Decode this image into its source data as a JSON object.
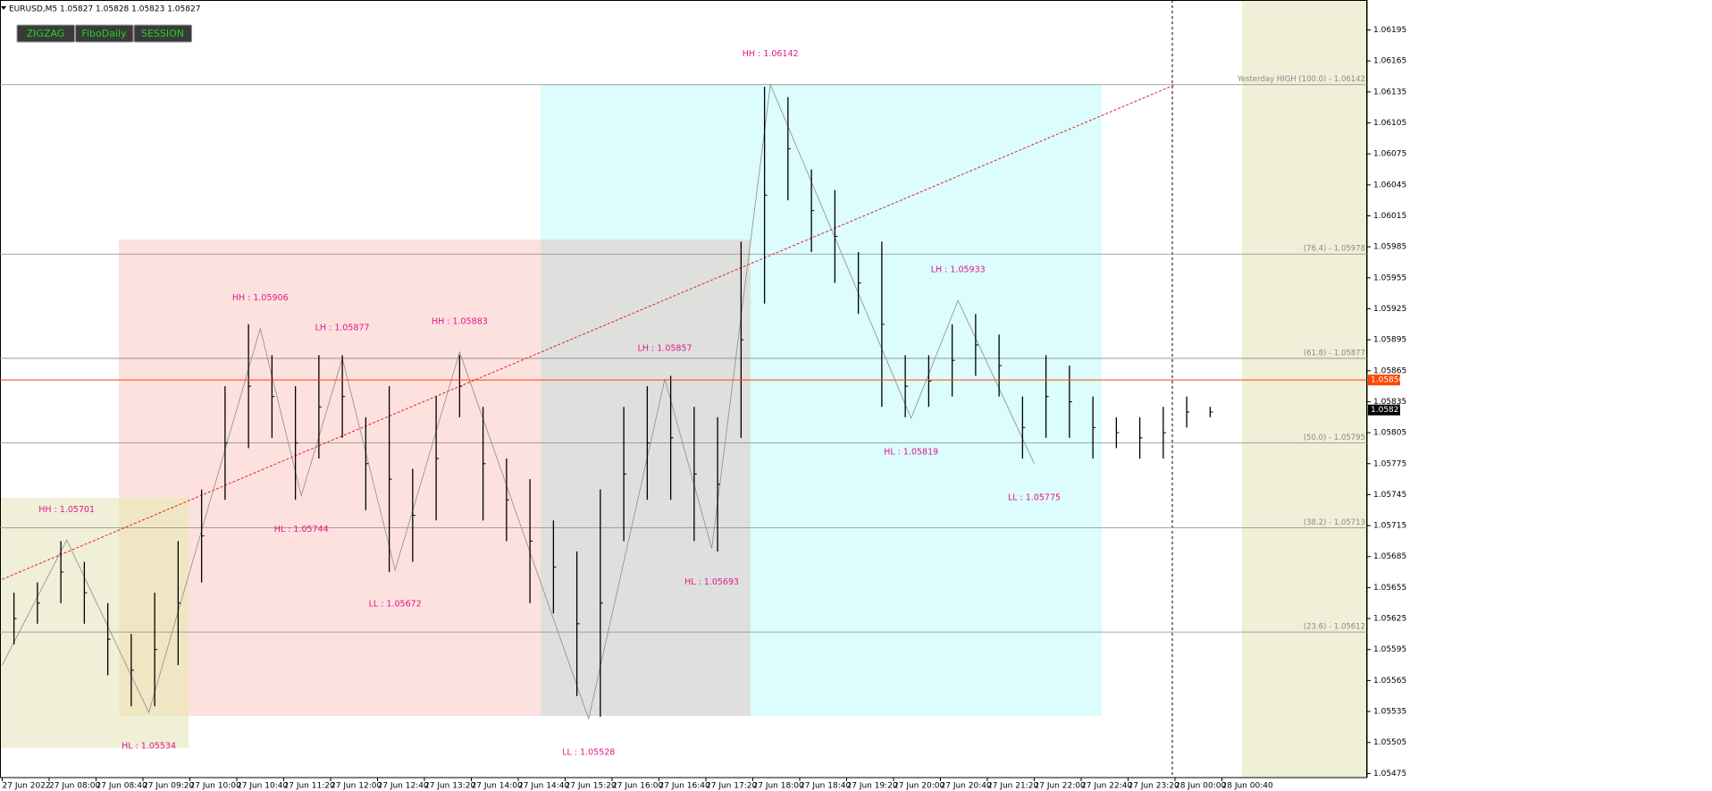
{
  "chart_data": {
    "type": "ohlc",
    "header": "EURUSD,M5  1.05827 1.05828 1.05823 1.05827",
    "buttons": [
      "ZIGZAG",
      "FiboDaily",
      "SESSION"
    ],
    "ylim": [
      1.05471,
      1.06224
    ],
    "yticks": [
      1.06195,
      1.06165,
      1.06135,
      1.06105,
      1.06075,
      1.06045,
      1.06015,
      1.05985,
      1.05955,
      1.05925,
      1.05895,
      1.05865,
      1.05835,
      1.05805,
      1.05775,
      1.05745,
      1.05715,
      1.05685,
      1.05655,
      1.05625,
      1.05595,
      1.05565,
      1.05535,
      1.05505,
      1.05475
    ],
    "time_labels": [
      "27 Jun 2022",
      "27 Jun 08:00",
      "27 Jun 08:40",
      "27 Jun 09:20",
      "27 Jun 10:00",
      "27 Jun 10:40",
      "27 Jun 11:20",
      "27 Jun 12:00",
      "27 Jun 12:40",
      "27 Jun 13:20",
      "27 Jun 14:00",
      "27 Jun 14:40",
      "27 Jun 15:20",
      "27 Jun 16:00",
      "27 Jun 16:40",
      "27 Jun 17:20",
      "27 Jun 18:00",
      "27 Jun 18:40",
      "27 Jun 19:20",
      "27 Jun 20:00",
      "27 Jun 20:40",
      "27 Jun 21:20",
      "27 Jun 22:00",
      "27 Jun 22:40",
      "27 Jun 23:20",
      "28 Jun 00:00",
      "28 Jun 00:40"
    ],
    "bars": {
      "color": "#000000",
      "high": [
        1.0565,
        1.0566,
        1.057,
        1.0568,
        1.0564,
        1.0561,
        1.0565,
        1.057,
        1.0575,
        1.0585,
        1.0591,
        1.0588,
        1.0585,
        1.0588,
        1.0588,
        1.0582,
        1.0585,
        1.0577,
        1.0584,
        1.0588,
        1.0583,
        1.0578,
        1.0576,
        1.0572,
        1.0569,
        1.0575,
        1.0583,
        1.0585,
        1.0586,
        1.0583,
        1.0582,
        1.0599,
        1.0614,
        1.0613,
        1.0606,
        1.0604,
        1.0598,
        1.0599,
        1.0588,
        1.0588,
        1.0591,
        1.0592,
        1.059,
        1.0584,
        1.0588,
        1.0587,
        1.0584,
        1.0582,
        1.0582,
        1.0583,
        1.0584,
        1.0583
      ],
      "low": [
        1.056,
        1.0562,
        1.0564,
        1.0562,
        1.0557,
        1.0554,
        1.0554,
        1.0558,
        1.0566,
        1.0574,
        1.0579,
        1.058,
        1.0574,
        1.0578,
        1.058,
        1.0573,
        1.0567,
        1.0568,
        1.0572,
        1.0582,
        1.0572,
        1.057,
        1.0564,
        1.0563,
        1.0555,
        1.0553,
        1.057,
        1.0574,
        1.0574,
        1.057,
        1.0569,
        1.058,
        1.0593,
        1.0603,
        1.0598,
        1.0595,
        1.0592,
        1.0583,
        1.0582,
        1.0583,
        1.0584,
        1.0586,
        1.0584,
        1.0578,
        1.058,
        1.058,
        1.0578,
        1.0579,
        1.0578,
        1.0578,
        1.0581,
        1.0582
      ]
    },
    "zigzag": {
      "color": "#8c8c8c",
      "x": [
        0,
        11,
        25,
        44,
        51,
        58,
        67,
        78,
        100,
        113,
        121,
        131,
        155,
        163,
        176
      ],
      "values": [
        1.0558,
        1.05701,
        1.05534,
        1.05906,
        1.05744,
        1.05877,
        1.05672,
        1.05883,
        1.05528,
        1.05857,
        1.05693,
        1.06142,
        1.05819,
        1.05933,
        1.05775
      ],
      "value_labels": [
        null,
        "HH : 1.05701",
        "HL : 1.05534",
        "HH : 1.05906",
        "HL : 1.05744",
        "LH : 1.05877",
        "LL : 1.05672",
        "HH : 1.05883",
        "LL : 1.05528",
        "LH : 1.05857",
        "HL : 1.05693",
        "HH : 1.06142",
        "HL : 1.05819",
        "LH : 1.05933",
        "LL : 1.05775"
      ],
      "label_color": "#e0198c"
    },
    "trendline": {
      "x": [
        0,
        200
      ],
      "values": [
        1.05663,
        1.06142
      ],
      "color": "#e02020"
    },
    "levels": [
      {
        "label": "Yesterday HIGH (100.0) -  1.06142",
        "value": 1.06142
      },
      {
        "label": "(76.4) -  1.05978",
        "value": 1.05978
      },
      {
        "label": "(61.8) -  1.05877",
        "value": 1.05877
      },
      {
        "label": "(50.0) -  1.05795",
        "value": 1.05795
      },
      {
        "label": "(38.2) -  1.05713",
        "value": 1.05713
      },
      {
        "label": "(23.6) -  1.05612",
        "value": 1.05612
      }
    ],
    "price_tags": [
      {
        "value": 1.05856,
        "color": "#ff4500",
        "line": true
      },
      {
        "value": 1.05827,
        "color": "#000000",
        "line": false
      }
    ]
  }
}
